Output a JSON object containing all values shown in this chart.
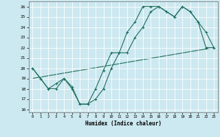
{
  "xlabel": "Humidex (Indice chaleur)",
  "xlim": [
    -0.5,
    23.5
  ],
  "ylim": [
    15.7,
    26.5
  ],
  "yticks": [
    16,
    17,
    18,
    19,
    20,
    21,
    22,
    23,
    24,
    25,
    26
  ],
  "xticks": [
    0,
    1,
    2,
    3,
    4,
    5,
    6,
    7,
    8,
    9,
    10,
    11,
    12,
    13,
    14,
    15,
    16,
    17,
    18,
    19,
    20,
    21,
    22,
    23
  ],
  "bg_color": "#cce8f0",
  "grid_color": "#ffffff",
  "line_color": "#1a6b5a",
  "line1_x": [
    0,
    1,
    2,
    3,
    4,
    5,
    6,
    7,
    8,
    9,
    10,
    11,
    12,
    13,
    14,
    15,
    16,
    17,
    18,
    19,
    20,
    21,
    22,
    23
  ],
  "line1_y": [
    20,
    19,
    18,
    18.5,
    19,
    18,
    16.5,
    16.5,
    18,
    19.8,
    21.5,
    21.5,
    23.5,
    24.5,
    26,
    26,
    26,
    25.5,
    25,
    26,
    25.5,
    24.5,
    23.5,
    22
  ],
  "line2_x": [
    0,
    1,
    2,
    3,
    4,
    5,
    6,
    7,
    8,
    9,
    10,
    11,
    12,
    13,
    14,
    15,
    16,
    17,
    18,
    19,
    20,
    21,
    22,
    23
  ],
  "line2_y": [
    20,
    19,
    18,
    18,
    19,
    18.2,
    16.5,
    16.5,
    17,
    18,
    20,
    21.5,
    21.5,
    23,
    24,
    25.5,
    26,
    25.5,
    25,
    26,
    25.5,
    24.5,
    22,
    22
  ],
  "line3_x": [
    0,
    23
  ],
  "line3_y": [
    19,
    22
  ]
}
